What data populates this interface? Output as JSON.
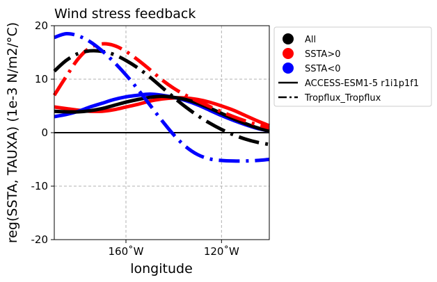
{
  "chart_data": {
    "type": "line",
    "title": "Wind stress feedback",
    "xlabel": "longitude",
    "ylabel": "reg(SSTA, TAUXA) (1e-3 N/m2/°C)",
    "xlim": [
      -190,
      -100
    ],
    "ylim": [
      -20,
      20
    ],
    "xticks": [
      {
        "value": -160,
        "label": "160˚W"
      },
      {
        "value": -120,
        "label": "120˚W"
      }
    ],
    "yticks": [
      {
        "value": 20,
        "label": "20"
      },
      {
        "value": 10,
        "label": "10"
      },
      {
        "value": 0,
        "label": "0"
      },
      {
        "value": -10,
        "label": "-10"
      },
      {
        "value": -20,
        "label": "-20"
      }
    ],
    "grid": true,
    "legend_position": "outside-right",
    "legend": [
      {
        "label": "All",
        "marker": "circle",
        "color": "#000000"
      },
      {
        "label": "SSTA>0",
        "marker": "circle",
        "color": "#ff0000"
      },
      {
        "label": "SSTA<0",
        "marker": "circle",
        "color": "#0000ff"
      },
      {
        "label": "ACCESS-ESM1-5 r1i1p1f1",
        "marker": "solid-line",
        "color": "#000000"
      },
      {
        "label": "Tropflux_Tropflux",
        "marker": "dashdot-line",
        "color": "#000000"
      }
    ],
    "reference_line": {
      "y": 0,
      "color": "#000000"
    },
    "series": [
      {
        "color": "#ff0000",
        "style": "solid",
        "x": [
          -190,
          -185,
          -180,
          -175,
          -170,
          -165,
          -160,
          -155,
          -150,
          -145,
          -140,
          -135,
          -130,
          -125,
          -120,
          -115,
          -110,
          -105,
          -100
        ],
        "y": [
          4.8,
          4.5,
          4.2,
          4.0,
          4.0,
          4.3,
          4.8,
          5.3,
          5.9,
          6.3,
          6.5,
          6.5,
          6.2,
          5.7,
          5.0,
          4.2,
          3.2,
          2.2,
          1.3
        ]
      },
      {
        "color": "#0000ff",
        "style": "solid",
        "x": [
          -190,
          -185,
          -180,
          -175,
          -170,
          -165,
          -160,
          -155,
          -150,
          -145,
          -140,
          -135,
          -130,
          -125,
          -120,
          -115,
          -110,
          -105,
          -100
        ],
        "y": [
          3.0,
          3.4,
          4.0,
          4.8,
          5.5,
          6.2,
          6.7,
          7.0,
          7.2,
          7.0,
          6.6,
          6.0,
          5.2,
          4.2,
          3.2,
          2.3,
          1.5,
          0.8,
          0.3
        ]
      },
      {
        "color": "#000000",
        "style": "solid",
        "x": [
          -190,
          -185,
          -180,
          -175,
          -170,
          -165,
          -160,
          -155,
          -150,
          -145,
          -140,
          -135,
          -130,
          -125,
          -120,
          -115,
          -110,
          -105,
          -100
        ],
        "y": [
          4.0,
          3.9,
          3.9,
          4.1,
          4.5,
          5.1,
          5.7,
          6.2,
          6.6,
          6.8,
          6.6,
          6.2,
          5.5,
          4.6,
          3.6,
          2.6,
          1.7,
          0.9,
          0.3
        ]
      },
      {
        "color": "#ff0000",
        "style": "dashdot",
        "x": [
          -190,
          -185,
          -180,
          -175,
          -170,
          -165,
          -160,
          -155,
          -150,
          -145,
          -140,
          -135,
          -130,
          -125,
          -120,
          -115,
          -110,
          -105,
          -100
        ],
        "y": [
          7.0,
          10.5,
          13.8,
          15.9,
          16.6,
          16.3,
          15.2,
          13.6,
          11.8,
          9.9,
          8.3,
          7.0,
          5.9,
          4.9,
          3.9,
          3.0,
          2.2,
          1.5,
          0.9
        ]
      },
      {
        "color": "#000000",
        "style": "dashdot",
        "x": [
          -190,
          -185,
          -180,
          -175,
          -170,
          -165,
          -160,
          -155,
          -150,
          -145,
          -140,
          -135,
          -130,
          -125,
          -120,
          -115,
          -110,
          -105,
          -100
        ],
        "y": [
          11.5,
          13.5,
          14.8,
          15.3,
          15.2,
          14.6,
          13.5,
          12.1,
          10.4,
          8.5,
          6.6,
          4.8,
          3.2,
          1.8,
          0.6,
          -0.4,
          -1.2,
          -1.8,
          -2.2
        ]
      },
      {
        "color": "#0000ff",
        "style": "dashdot",
        "x": [
          -190,
          -185,
          -180,
          -175,
          -170,
          -165,
          -160,
          -155,
          -150,
          -145,
          -140,
          -135,
          -130,
          -125,
          -120,
          -115,
          -110,
          -105,
          -100
        ],
        "y": [
          17.8,
          18.5,
          18.1,
          17.0,
          15.3,
          13.2,
          10.8,
          8.1,
          5.2,
          2.3,
          -0.4,
          -2.6,
          -4.1,
          -4.9,
          -5.2,
          -5.3,
          -5.3,
          -5.2,
          -5.0
        ]
      }
    ]
  }
}
